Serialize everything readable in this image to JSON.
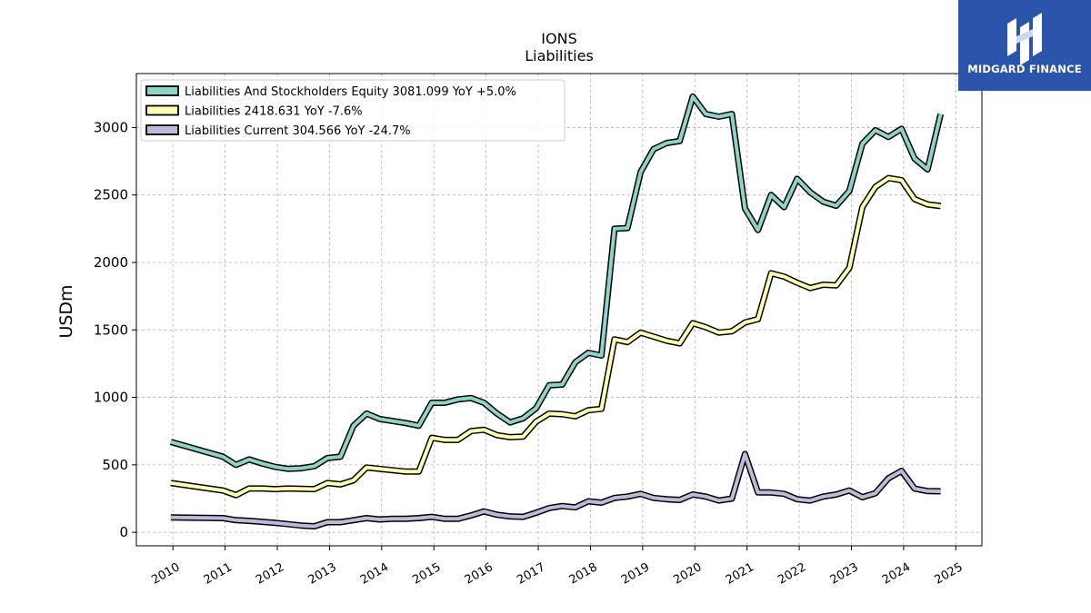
{
  "logo": {
    "text": "MIDGARD FINANCE",
    "bg_color": "#2a55ab",
    "icon": "midgard-logo-icon"
  },
  "chart_data": {
    "type": "line",
    "title": "IONS",
    "subtitle": "Liabilities",
    "ylabel": "USDm",
    "xlabel": "",
    "xlim": [
      2009.3,
      2025.5
    ],
    "ylim": [
      -100,
      3400
    ],
    "yticks": [
      0,
      500,
      1000,
      1500,
      2000,
      2500,
      3000
    ],
    "xticks": [
      "2010",
      "2011",
      "2012",
      "2013",
      "2014",
      "2015",
      "2016",
      "2017",
      "2018",
      "2019",
      "2020",
      "2021",
      "2022",
      "2023",
      "2024",
      "2025"
    ],
    "grid": true,
    "legend_position": "top-left",
    "series": [
      {
        "name": "Liabilities And Stockholders Equity",
        "legend": "Liabilities And Stockholders Equity  3081.099 YoY +5.0%",
        "color": "#8dd3c7",
        "x": [
          2009.96,
          2010.96,
          2011.21,
          2011.46,
          2011.71,
          2011.96,
          2012.21,
          2012.46,
          2012.71,
          2012.96,
          2013.21,
          2013.46,
          2013.71,
          2013.96,
          2014.21,
          2014.46,
          2014.71,
          2014.96,
          2015.21,
          2015.46,
          2015.71,
          2015.96,
          2016.21,
          2016.46,
          2016.71,
          2016.96,
          2017.21,
          2017.46,
          2017.71,
          2017.96,
          2018.21,
          2018.46,
          2018.71,
          2018.96,
          2019.21,
          2019.46,
          2019.71,
          2019.96,
          2020.21,
          2020.46,
          2020.71,
          2020.96,
          2021.21,
          2021.46,
          2021.71,
          2021.96,
          2022.21,
          2022.46,
          2022.71,
          2022.96,
          2023.21,
          2023.46,
          2023.71,
          2023.96,
          2024.21,
          2024.46,
          2024.71
        ],
        "values": [
          670,
          560,
          500,
          540,
          510,
          485,
          470,
          475,
          490,
          550,
          560,
          790,
          880,
          840,
          825,
          810,
          790,
          960,
          960,
          985,
          995,
          960,
          880,
          815,
          845,
          920,
          1090,
          1095,
          1260,
          1330,
          1310,
          2250,
          2255,
          2670,
          2840,
          2885,
          2900,
          3230,
          3100,
          3080,
          3100,
          2400,
          2240,
          2500,
          2410,
          2620,
          2520,
          2450,
          2420,
          2530,
          2880,
          2980,
          2930,
          2990,
          2770,
          2690,
          3100
        ]
      },
      {
        "name": "Liabilities",
        "legend": "Liabilities  2418.631 YoY -7.6%",
        "color": "#ffffb3",
        "x": [
          2009.96,
          2010.96,
          2011.21,
          2011.46,
          2011.71,
          2011.96,
          2012.21,
          2012.46,
          2012.71,
          2012.96,
          2013.21,
          2013.46,
          2013.71,
          2013.96,
          2014.21,
          2014.46,
          2014.71,
          2014.96,
          2015.21,
          2015.46,
          2015.71,
          2015.96,
          2016.21,
          2016.46,
          2016.71,
          2016.96,
          2017.21,
          2017.46,
          2017.71,
          2017.96,
          2018.21,
          2018.46,
          2018.71,
          2018.96,
          2019.21,
          2019.46,
          2019.71,
          2019.96,
          2020.21,
          2020.46,
          2020.71,
          2020.96,
          2021.21,
          2021.46,
          2021.71,
          2021.96,
          2022.21,
          2022.46,
          2022.71,
          2022.96,
          2023.21,
          2023.46,
          2023.71,
          2023.96,
          2024.21,
          2024.46,
          2024.71
        ],
        "values": [
          365,
          310,
          275,
          325,
          325,
          320,
          325,
          322,
          320,
          365,
          355,
          385,
          480,
          470,
          460,
          450,
          450,
          700,
          685,
          685,
          750,
          760,
          720,
          705,
          710,
          820,
          880,
          875,
          860,
          905,
          915,
          1430,
          1410,
          1480,
          1450,
          1420,
          1400,
          1550,
          1520,
          1480,
          1490,
          1555,
          1580,
          1920,
          1895,
          1850,
          1810,
          1835,
          1830,
          1960,
          2410,
          2560,
          2625,
          2610,
          2470,
          2430,
          2418
        ]
      },
      {
        "name": "Liabilities Current",
        "legend": "Liabilities Current  304.566 YoY -24.7%",
        "color": "#bebada",
        "x": [
          2009.96,
          2010.96,
          2011.21,
          2011.46,
          2011.71,
          2011.96,
          2012.21,
          2012.46,
          2012.71,
          2012.96,
          2013.21,
          2013.46,
          2013.71,
          2013.96,
          2014.21,
          2014.46,
          2014.71,
          2014.96,
          2015.21,
          2015.46,
          2015.71,
          2015.96,
          2016.21,
          2016.46,
          2016.71,
          2016.96,
          2017.21,
          2017.46,
          2017.71,
          2017.96,
          2018.21,
          2018.46,
          2018.71,
          2018.96,
          2019.21,
          2019.46,
          2019.71,
          2019.96,
          2020.21,
          2020.46,
          2020.71,
          2020.96,
          2021.21,
          2021.46,
          2021.71,
          2021.96,
          2022.21,
          2022.46,
          2022.71,
          2022.96,
          2023.21,
          2023.46,
          2023.71,
          2023.96,
          2024.21,
          2024.46,
          2024.71
        ],
        "values": [
          110,
          105,
          90,
          85,
          78,
          70,
          60,
          50,
          45,
          75,
          75,
          90,
          105,
          95,
          100,
          100,
          105,
          115,
          100,
          100,
          125,
          155,
          130,
          118,
          115,
          145,
          180,
          195,
          185,
          230,
          220,
          255,
          265,
          285,
          255,
          245,
          240,
          280,
          265,
          235,
          250,
          580,
          295,
          295,
          285,
          245,
          235,
          265,
          280,
          310,
          260,
          290,
          400,
          455,
          325,
          305,
          304
        ]
      }
    ]
  }
}
